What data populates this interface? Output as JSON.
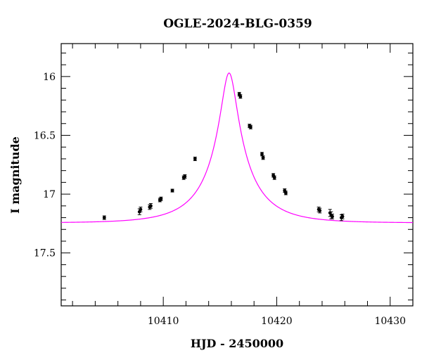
{
  "chart_data": {
    "type": "scatter",
    "title": "OGLE-2024-BLG-0359",
    "xlabel": "HJD - 2450000",
    "ylabel": "I magnitude",
    "xlim": [
      10401,
      10432
    ],
    "ylim": [
      17.95,
      15.72
    ],
    "y_inverted": true,
    "x_major_ticks": [
      10410,
      10420,
      10430
    ],
    "x_minor_step": 2,
    "y_major_ticks": [
      16,
      16.5,
      17,
      17.5
    ],
    "y_tick_labels": [
      "16",
      "16.5",
      "17",
      "17.5"
    ],
    "y_minor_step": 0.1,
    "grid": false,
    "series": [
      {
        "name": "observations",
        "kind": "points_with_errorbars",
        "color": "#000000",
        "x": [
          10404.8,
          10407.9,
          10408.0,
          10408.8,
          10408.9,
          10409.7,
          10409.8,
          10410.8,
          10411.8,
          10411.9,
          10412.8,
          10416.7,
          10416.8,
          10417.6,
          10417.7,
          10418.7,
          10418.8,
          10419.7,
          10419.8,
          10420.7,
          10420.8,
          10423.7,
          10423.8,
          10424.7,
          10424.8,
          10424.9,
          10425.7,
          10425.8
        ],
        "y": [
          17.2,
          17.15,
          17.13,
          17.11,
          17.1,
          17.05,
          17.04,
          16.97,
          16.86,
          16.85,
          16.7,
          16.15,
          16.17,
          16.42,
          16.43,
          16.66,
          16.69,
          16.84,
          16.86,
          16.97,
          16.99,
          17.13,
          17.14,
          17.16,
          17.18,
          17.19,
          17.2,
          17.19
        ],
        "yerr": [
          0.015,
          0.025,
          0.02,
          0.02,
          0.02,
          0.015,
          0.015,
          0.012,
          0.015,
          0.015,
          0.015,
          0.015,
          0.015,
          0.015,
          0.015,
          0.015,
          0.015,
          0.015,
          0.015,
          0.015,
          0.015,
          0.02,
          0.02,
          0.03,
          0.03,
          0.02,
          0.025,
          0.02
        ]
      },
      {
        "name": "model",
        "kind": "paczynski_curve",
        "color": "#ff00ff",
        "t0": 10415.8,
        "tE": 4.2,
        "u0": 0.16,
        "I_base": 17.245,
        "I_peak": 15.97
      }
    ]
  }
}
